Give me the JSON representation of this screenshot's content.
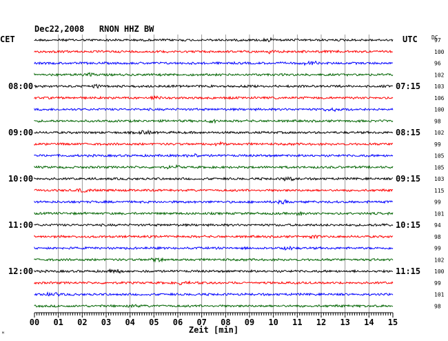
{
  "chart_data": {
    "type": "line",
    "title": "Dec22,2008   RNON HHZ BW",
    "xlabel": "Zeit [min]",
    "left_axis_label": "CET",
    "right_axis_label": "UTC",
    "dc_header": "DC",
    "x_ticks": [
      "00",
      "01",
      "02",
      "03",
      "04",
      "05",
      "06",
      "07",
      "08",
      "09",
      "10",
      "11",
      "12",
      "13",
      "14",
      "15"
    ],
    "xlim": [
      0,
      15
    ],
    "left_time_labels": [
      {
        "trace": 4,
        "label": "08:00"
      },
      {
        "trace": 8,
        "label": "09:00"
      },
      {
        "trace": 12,
        "label": "10:00"
      },
      {
        "trace": 16,
        "label": "11:00"
      },
      {
        "trace": 20,
        "label": "12:00"
      }
    ],
    "right_time_labels": [
      {
        "trace": 0,
        "label": "UTC"
      },
      {
        "trace": 4,
        "label": "07:15"
      },
      {
        "trace": 8,
        "label": "08:15"
      },
      {
        "trace": 12,
        "label": "09:15"
      },
      {
        "trace": 16,
        "label": "10:15"
      },
      {
        "trace": 20,
        "label": "11:15"
      }
    ],
    "trace_colors": [
      "#000000",
      "#ff0000",
      "#0000ff",
      "#006400"
    ],
    "dc_values": [
      "97",
      "100",
      "96",
      "102",
      "103",
      "106",
      "100",
      "98",
      "102",
      "99",
      "105",
      "105",
      "103",
      "115",
      "99",
      "101",
      "94",
      "98",
      "99",
      "102",
      "100",
      "99",
      "101",
      "98"
    ],
    "trace_count": 24
  },
  "corner_mark": "ᴹ"
}
